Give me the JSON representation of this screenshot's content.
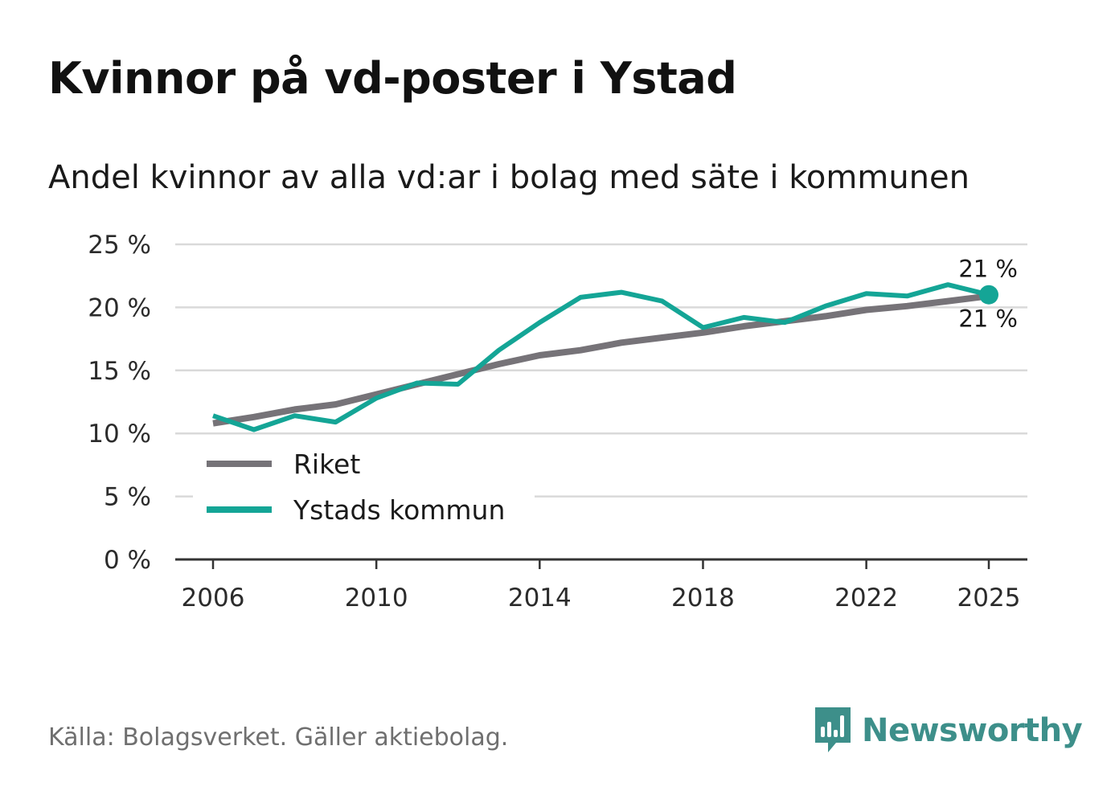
{
  "title": "Kvinnor på vd-poster i Ystad",
  "subtitle": "Andel kvinnor av alla vd:ar i bolag med säte i kommunen",
  "source": "Källa: Bolagsverket. Gäller aktiebolag.",
  "brand": "Newsworthy",
  "colors": {
    "riket": "#767378",
    "ystad": "#14a596",
    "grid": "#d9d9d9",
    "axis": "#333333",
    "brand": "#3d8f8a"
  },
  "chart_data": {
    "type": "line",
    "title": "Andel kvinnor av alla vd:ar i bolag med säte i kommunen",
    "xlabel": "",
    "ylabel": "",
    "ylim": [
      0,
      25
    ],
    "xlim": [
      2006,
      2025
    ],
    "yticks": [
      0,
      5,
      10,
      15,
      20,
      25
    ],
    "ytick_labels": [
      "0 %",
      "5 %",
      "10 %",
      "15 %",
      "20 %",
      "25 %"
    ],
    "xticks": [
      2006,
      2010,
      2014,
      2018,
      2022,
      2025
    ],
    "xtick_labels": [
      "2006",
      "2010",
      "2014",
      "2018",
      "2022",
      "2025"
    ],
    "x": [
      2006,
      2007,
      2008,
      2009,
      2010,
      2011,
      2012,
      2013,
      2014,
      2015,
      2016,
      2017,
      2018,
      2019,
      2020,
      2021,
      2022,
      2023,
      2024,
      2025
    ],
    "series": [
      {
        "name": "Riket",
        "values": [
          10.8,
          11.3,
          11.9,
          12.3,
          13.1,
          13.9,
          14.7,
          15.5,
          16.2,
          16.6,
          17.2,
          17.6,
          18.0,
          18.5,
          18.9,
          19.3,
          19.8,
          20.1,
          20.5,
          20.9
        ]
      },
      {
        "name": "Ystads kommun",
        "values": [
          11.4,
          10.3,
          11.4,
          10.9,
          12.8,
          14.0,
          13.9,
          16.6,
          18.8,
          20.8,
          21.2,
          20.5,
          18.4,
          19.2,
          18.8,
          20.1,
          21.1,
          20.9,
          21.8,
          21.0
        ]
      }
    ],
    "end_labels": [
      {
        "series": "Ystads kommun",
        "text": "21 %",
        "position": "above"
      },
      {
        "series": "Riket",
        "text": "21 %",
        "position": "below"
      }
    ],
    "legend": {
      "position": "bottom-left",
      "entries": [
        "Riket",
        "Ystads kommun"
      ]
    }
  }
}
